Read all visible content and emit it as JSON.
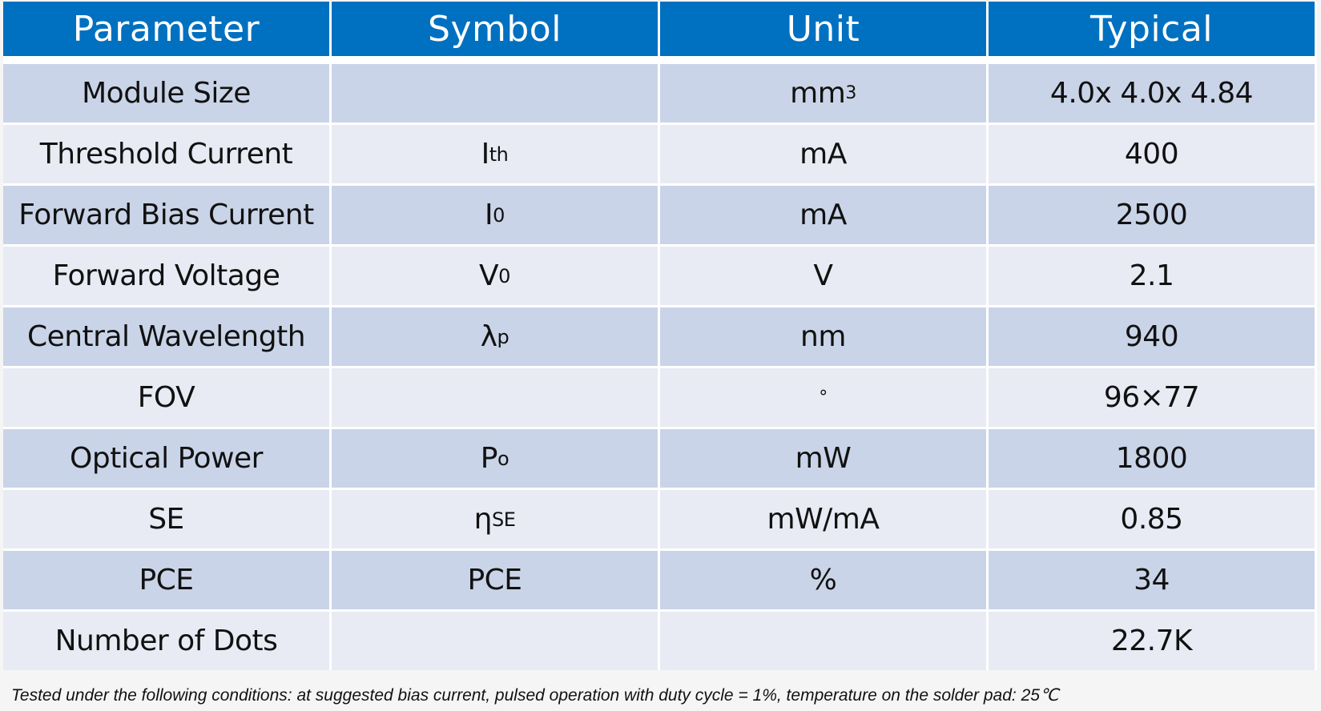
{
  "table": {
    "headers": [
      "Parameter",
      "Symbol",
      "Unit",
      "Typical"
    ],
    "rows": [
      {
        "parameter": "Module Size",
        "symbol": "",
        "symbol_sub": "",
        "unit": "mm",
        "unit_sup": "3",
        "typical": "4.0x 4.0x 4.84"
      },
      {
        "parameter": "Threshold Current",
        "symbol": "I",
        "symbol_sub": "th",
        "unit": "mA",
        "unit_sup": "",
        "typical": "400"
      },
      {
        "parameter": "Forward Bias Current",
        "symbol": "I",
        "symbol_sub": "0",
        "unit": "mA",
        "unit_sup": "",
        "typical": "2500"
      },
      {
        "parameter": "Forward Voltage",
        "symbol": "V",
        "symbol_sub": "0",
        "unit": "V",
        "unit_sup": "",
        "typical": "2.1"
      },
      {
        "parameter": "Central Wavelength",
        "symbol": "λ",
        "symbol_sub": "p",
        "unit": "nm",
        "unit_sup": "",
        "typical": "940"
      },
      {
        "parameter": "FOV",
        "symbol": "",
        "symbol_sub": "",
        "unit": "",
        "unit_sup": "°",
        "typical": "96×77"
      },
      {
        "parameter": "Optical Power",
        "symbol": "P",
        "symbol_sub": "o",
        "unit": "mW",
        "unit_sup": "",
        "typical": "1800"
      },
      {
        "parameter": "SE",
        "symbol": "η",
        "symbol_sub": "SE",
        "unit": "mW/mA",
        "unit_sup": "",
        "typical": "0.85"
      },
      {
        "parameter": "PCE",
        "symbol": "PCE",
        "symbol_sub": "",
        "unit": "%",
        "unit_sup": "",
        "typical": "34"
      },
      {
        "parameter": "Number of Dots",
        "symbol": "",
        "symbol_sub": "",
        "unit": "",
        "unit_sup": "",
        "typical": "22.7K"
      }
    ]
  },
  "footnote": "Tested under the following conditions: at suggested bias current, pulsed operation with duty cycle = 1%, temperature on the solder pad: 25℃",
  "colors": {
    "header_bg": "#0070c0",
    "row_odd": "#cad4e8",
    "row_even": "#e8ebf4"
  }
}
